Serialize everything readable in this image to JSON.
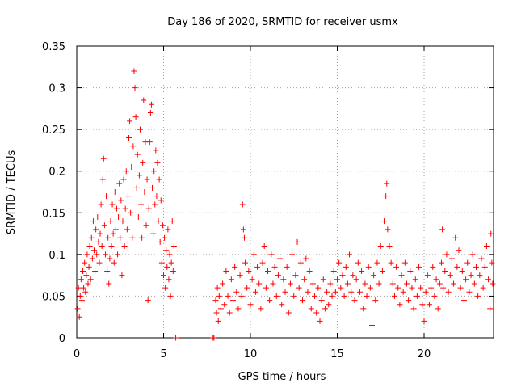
{
  "chart_data": {
    "type": "scatter",
    "title": "Day 186 of 2020, SRMTID for receiver usmx",
    "xlabel": "GPS time / hours",
    "ylabel": "SRMTID / TECUs",
    "xlim": [
      0,
      24
    ],
    "ylim": [
      0,
      0.35
    ],
    "xticks": [
      0,
      5,
      10,
      15,
      20
    ],
    "yticks": [
      0,
      0.05,
      0.1,
      0.15,
      0.2,
      0.25,
      0.3,
      0.35
    ],
    "xtick_labels": [
      "0",
      "5",
      "10",
      "15",
      "20"
    ],
    "ytick_labels": [
      "0",
      "0.05",
      "0.1",
      "0.15",
      "0.2",
      "0.25",
      "0.3",
      "0.35"
    ],
    "grid": true,
    "marker": "+",
    "series": [
      {
        "name": "SRMTID",
        "color": "#ff0000",
        "points": [
          [
            0.05,
            0.035
          ],
          [
            0.1,
            0.06
          ],
          [
            0.15,
            0.025
          ],
          [
            0.2,
            0.05
          ],
          [
            0.25,
            0.07
          ],
          [
            0.3,
            0.045
          ],
          [
            0.35,
            0.08
          ],
          [
            0.4,
            0.06
          ],
          [
            0.45,
            0.09
          ],
          [
            0.5,
            0.055
          ],
          [
            0.55,
            0.075
          ],
          [
            0.6,
            0.1
          ],
          [
            0.65,
            0.065
          ],
          [
            0.7,
            0.085
          ],
          [
            0.75,
            0.11
          ],
          [
            0.8,
            0.07
          ],
          [
            0.85,
            0.12
          ],
          [
            0.9,
            0.095
          ],
          [
            0.95,
            0.14
          ],
          [
            1.0,
            0.105
          ],
          [
            1.05,
            0.08
          ],
          [
            1.1,
            0.13
          ],
          [
            1.15,
            0.1
          ],
          [
            1.2,
            0.145
          ],
          [
            1.25,
            0.115
          ],
          [
            1.3,
            0.09
          ],
          [
            1.35,
            0.125
          ],
          [
            1.4,
            0.16
          ],
          [
            1.45,
            0.11
          ],
          [
            1.5,
            0.19
          ],
          [
            1.55,
            0.215
          ],
          [
            1.6,
            0.135
          ],
          [
            1.65,
            0.1
          ],
          [
            1.7,
            0.17
          ],
          [
            1.75,
            0.08
          ],
          [
            1.8,
            0.12
          ],
          [
            1.85,
            0.065
          ],
          [
            1.9,
            0.095
          ],
          [
            1.95,
            0.14
          ],
          [
            2.0,
            0.11
          ],
          [
            2.05,
            0.16
          ],
          [
            2.1,
            0.125
          ],
          [
            2.15,
            0.09
          ],
          [
            2.2,
            0.175
          ],
          [
            2.25,
            0.13
          ],
          [
            2.3,
            0.155
          ],
          [
            2.35,
            0.1
          ],
          [
            2.4,
            0.145
          ],
          [
            2.45,
            0.185
          ],
          [
            2.5,
            0.12
          ],
          [
            2.55,
            0.165
          ],
          [
            2.6,
            0.075
          ],
          [
            2.65,
            0.14
          ],
          [
            2.7,
            0.19
          ],
          [
            2.75,
            0.11
          ],
          [
            2.8,
            0.155
          ],
          [
            2.85,
            0.2
          ],
          [
            2.9,
            0.13
          ],
          [
            2.95,
            0.17
          ],
          [
            3.0,
            0.24
          ],
          [
            3.05,
            0.26
          ],
          [
            3.1,
            0.15
          ],
          [
            3.15,
            0.205
          ],
          [
            3.2,
            0.12
          ],
          [
            3.25,
            0.23
          ],
          [
            3.3,
            0.32
          ],
          [
            3.35,
            0.3
          ],
          [
            3.4,
            0.265
          ],
          [
            3.45,
            0.18
          ],
          [
            3.5,
            0.22
          ],
          [
            3.55,
            0.145
          ],
          [
            3.6,
            0.195
          ],
          [
            3.65,
            0.25
          ],
          [
            3.7,
            0.16
          ],
          [
            3.75,
            0.12
          ],
          [
            3.8,
            0.21
          ],
          [
            3.85,
            0.285
          ],
          [
            3.9,
            0.175
          ],
          [
            3.95,
            0.235
          ],
          [
            4.0,
            0.135
          ],
          [
            4.05,
            0.19
          ],
          [
            4.1,
            0.045
          ],
          [
            4.15,
            0.155
          ],
          [
            4.2,
            0.235
          ],
          [
            4.25,
            0.27
          ],
          [
            4.3,
            0.28
          ],
          [
            4.35,
            0.18
          ],
          [
            4.4,
            0.125
          ],
          [
            4.45,
            0.2
          ],
          [
            4.5,
            0.16
          ],
          [
            4.55,
            0.225
          ],
          [
            4.6,
            0.17
          ],
          [
            4.65,
            0.21
          ],
          [
            4.7,
            0.14
          ],
          [
            4.75,
            0.19
          ],
          [
            4.8,
            0.115
          ],
          [
            4.85,
            0.165
          ],
          [
            4.9,
            0.09
          ],
          [
            4.95,
            0.135
          ],
          [
            5.0,
            0.075
          ],
          [
            5.05,
            0.12
          ],
          [
            5.1,
            0.06
          ],
          [
            5.15,
            0.105
          ],
          [
            5.2,
            0.085
          ],
          [
            5.25,
            0.13
          ],
          [
            5.3,
            0.07
          ],
          [
            5.35,
            0.1
          ],
          [
            5.4,
            0.05
          ],
          [
            5.45,
            0.09
          ],
          [
            5.5,
            0.14
          ],
          [
            5.55,
            0.08
          ],
          [
            5.6,
            0.11
          ],
          [
            5.7,
            0.0
          ],
          [
            7.85,
            0.0
          ],
          [
            7.9,
            0.0
          ],
          [
            8.0,
            0.045
          ],
          [
            8.05,
            0.03
          ],
          [
            8.1,
            0.06
          ],
          [
            8.15,
            0.02
          ],
          [
            8.2,
            0.05
          ],
          [
            8.3,
            0.035
          ],
          [
            8.4,
            0.065
          ],
          [
            8.5,
            0.04
          ],
          [
            8.6,
            0.08
          ],
          [
            8.7,
            0.05
          ],
          [
            8.8,
            0.03
          ],
          [
            8.9,
            0.07
          ],
          [
            9.0,
            0.045
          ],
          [
            9.1,
            0.085
          ],
          [
            9.2,
            0.055
          ],
          [
            9.3,
            0.035
          ],
          [
            9.4,
            0.075
          ],
          [
            9.5,
            0.05
          ],
          [
            9.55,
            0.16
          ],
          [
            9.6,
            0.13
          ],
          [
            9.65,
            0.12
          ],
          [
            9.7,
            0.09
          ],
          [
            9.8,
            0.06
          ],
          [
            9.9,
            0.08
          ],
          [
            10.0,
            0.04
          ],
          [
            10.1,
            0.07
          ],
          [
            10.2,
            0.1
          ],
          [
            10.3,
            0.055
          ],
          [
            10.4,
            0.085
          ],
          [
            10.5,
            0.065
          ],
          [
            10.6,
            0.035
          ],
          [
            10.7,
            0.09
          ],
          [
            10.8,
            0.11
          ],
          [
            10.9,
            0.06
          ],
          [
            11.0,
            0.08
          ],
          [
            11.1,
            0.045
          ],
          [
            11.2,
            0.1
          ],
          [
            11.3,
            0.065
          ],
          [
            11.4,
            0.085
          ],
          [
            11.5,
            0.05
          ],
          [
            11.6,
            0.075
          ],
          [
            11.7,
            0.095
          ],
          [
            11.8,
            0.04
          ],
          [
            11.9,
            0.07
          ],
          [
            12.0,
            0.055
          ],
          [
            12.1,
            0.085
          ],
          [
            12.2,
            0.03
          ],
          [
            12.3,
            0.065
          ],
          [
            12.4,
            0.1
          ],
          [
            12.5,
            0.05
          ],
          [
            12.6,
            0.075
          ],
          [
            12.7,
            0.115
          ],
          [
            12.8,
            0.06
          ],
          [
            12.9,
            0.09
          ],
          [
            13.0,
            0.045
          ],
          [
            13.1,
            0.07
          ],
          [
            13.2,
            0.095
          ],
          [
            13.3,
            0.055
          ],
          [
            13.4,
            0.08
          ],
          [
            13.5,
            0.035
          ],
          [
            13.6,
            0.065
          ],
          [
            13.7,
            0.05
          ],
          [
            13.8,
            0.03
          ],
          [
            13.9,
            0.06
          ],
          [
            14.0,
            0.02
          ],
          [
            14.1,
            0.045
          ],
          [
            14.2,
            0.07
          ],
          [
            14.3,
            0.035
          ],
          [
            14.4,
            0.055
          ],
          [
            14.5,
            0.04
          ],
          [
            14.6,
            0.065
          ],
          [
            14.7,
            0.05
          ],
          [
            14.8,
            0.08
          ],
          [
            14.9,
            0.055
          ],
          [
            15.0,
            0.07
          ],
          [
            15.1,
            0.09
          ],
          [
            15.2,
            0.06
          ],
          [
            15.3,
            0.075
          ],
          [
            15.4,
            0.05
          ],
          [
            15.5,
            0.085
          ],
          [
            15.6,
            0.065
          ],
          [
            15.7,
            0.1
          ],
          [
            15.8,
            0.055
          ],
          [
            15.9,
            0.075
          ],
          [
            16.0,
            0.045
          ],
          [
            16.1,
            0.07
          ],
          [
            16.2,
            0.09
          ],
          [
            16.3,
            0.055
          ],
          [
            16.4,
            0.08
          ],
          [
            16.5,
            0.035
          ],
          [
            16.6,
            0.065
          ],
          [
            16.7,
            0.05
          ],
          [
            16.8,
            0.085
          ],
          [
            16.9,
            0.06
          ],
          [
            17.0,
            0.015
          ],
          [
            17.1,
            0.075
          ],
          [
            17.2,
            0.045
          ],
          [
            17.3,
            0.09
          ],
          [
            17.4,
            0.065
          ],
          [
            17.5,
            0.11
          ],
          [
            17.6,
            0.08
          ],
          [
            17.7,
            0.14
          ],
          [
            17.8,
            0.17
          ],
          [
            17.85,
            0.185
          ],
          [
            17.9,
            0.13
          ],
          [
            18.0,
            0.11
          ],
          [
            18.1,
            0.09
          ],
          [
            18.2,
            0.065
          ],
          [
            18.3,
            0.05
          ],
          [
            18.4,
            0.085
          ],
          [
            18.5,
            0.06
          ],
          [
            18.6,
            0.04
          ],
          [
            18.7,
            0.075
          ],
          [
            18.8,
            0.055
          ],
          [
            18.9,
            0.09
          ],
          [
            19.0,
            0.065
          ],
          [
            19.1,
            0.045
          ],
          [
            19.2,
            0.08
          ],
          [
            19.3,
            0.06
          ],
          [
            19.4,
            0.035
          ],
          [
            19.5,
            0.07
          ],
          [
            19.6,
            0.05
          ],
          [
            19.7,
            0.085
          ],
          [
            19.8,
            0.06
          ],
          [
            19.9,
            0.04
          ],
          [
            20.0,
            0.02
          ],
          [
            20.1,
            0.055
          ],
          [
            20.2,
            0.075
          ],
          [
            20.3,
            0.04
          ],
          [
            20.4,
            0.06
          ],
          [
            20.5,
            0.085
          ],
          [
            20.6,
            0.05
          ],
          [
            20.7,
            0.07
          ],
          [
            20.8,
            0.035
          ],
          [
            20.9,
            0.065
          ],
          [
            21.0,
            0.09
          ],
          [
            21.05,
            0.13
          ],
          [
            21.1,
            0.06
          ],
          [
            21.2,
            0.08
          ],
          [
            21.3,
            0.1
          ],
          [
            21.4,
            0.055
          ],
          [
            21.5,
            0.075
          ],
          [
            21.6,
            0.095
          ],
          [
            21.7,
            0.065
          ],
          [
            21.8,
            0.12
          ],
          [
            21.9,
            0.085
          ],
          [
            22.0,
            0.105
          ],
          [
            22.1,
            0.06
          ],
          [
            22.2,
            0.08
          ],
          [
            22.3,
            0.045
          ],
          [
            22.4,
            0.07
          ],
          [
            22.5,
            0.09
          ],
          [
            22.6,
            0.055
          ],
          [
            22.7,
            0.075
          ],
          [
            22.8,
            0.1
          ],
          [
            22.9,
            0.065
          ],
          [
            23.0,
            0.085
          ],
          [
            23.1,
            0.05
          ],
          [
            23.2,
            0.075
          ],
          [
            23.3,
            0.095
          ],
          [
            23.4,
            0.06
          ],
          [
            23.5,
            0.085
          ],
          [
            23.6,
            0.11
          ],
          [
            23.7,
            0.07
          ],
          [
            23.8,
            0.035
          ],
          [
            23.85,
            0.125
          ],
          [
            23.9,
            0.09
          ],
          [
            23.95,
            0.065
          ]
        ]
      }
    ]
  }
}
